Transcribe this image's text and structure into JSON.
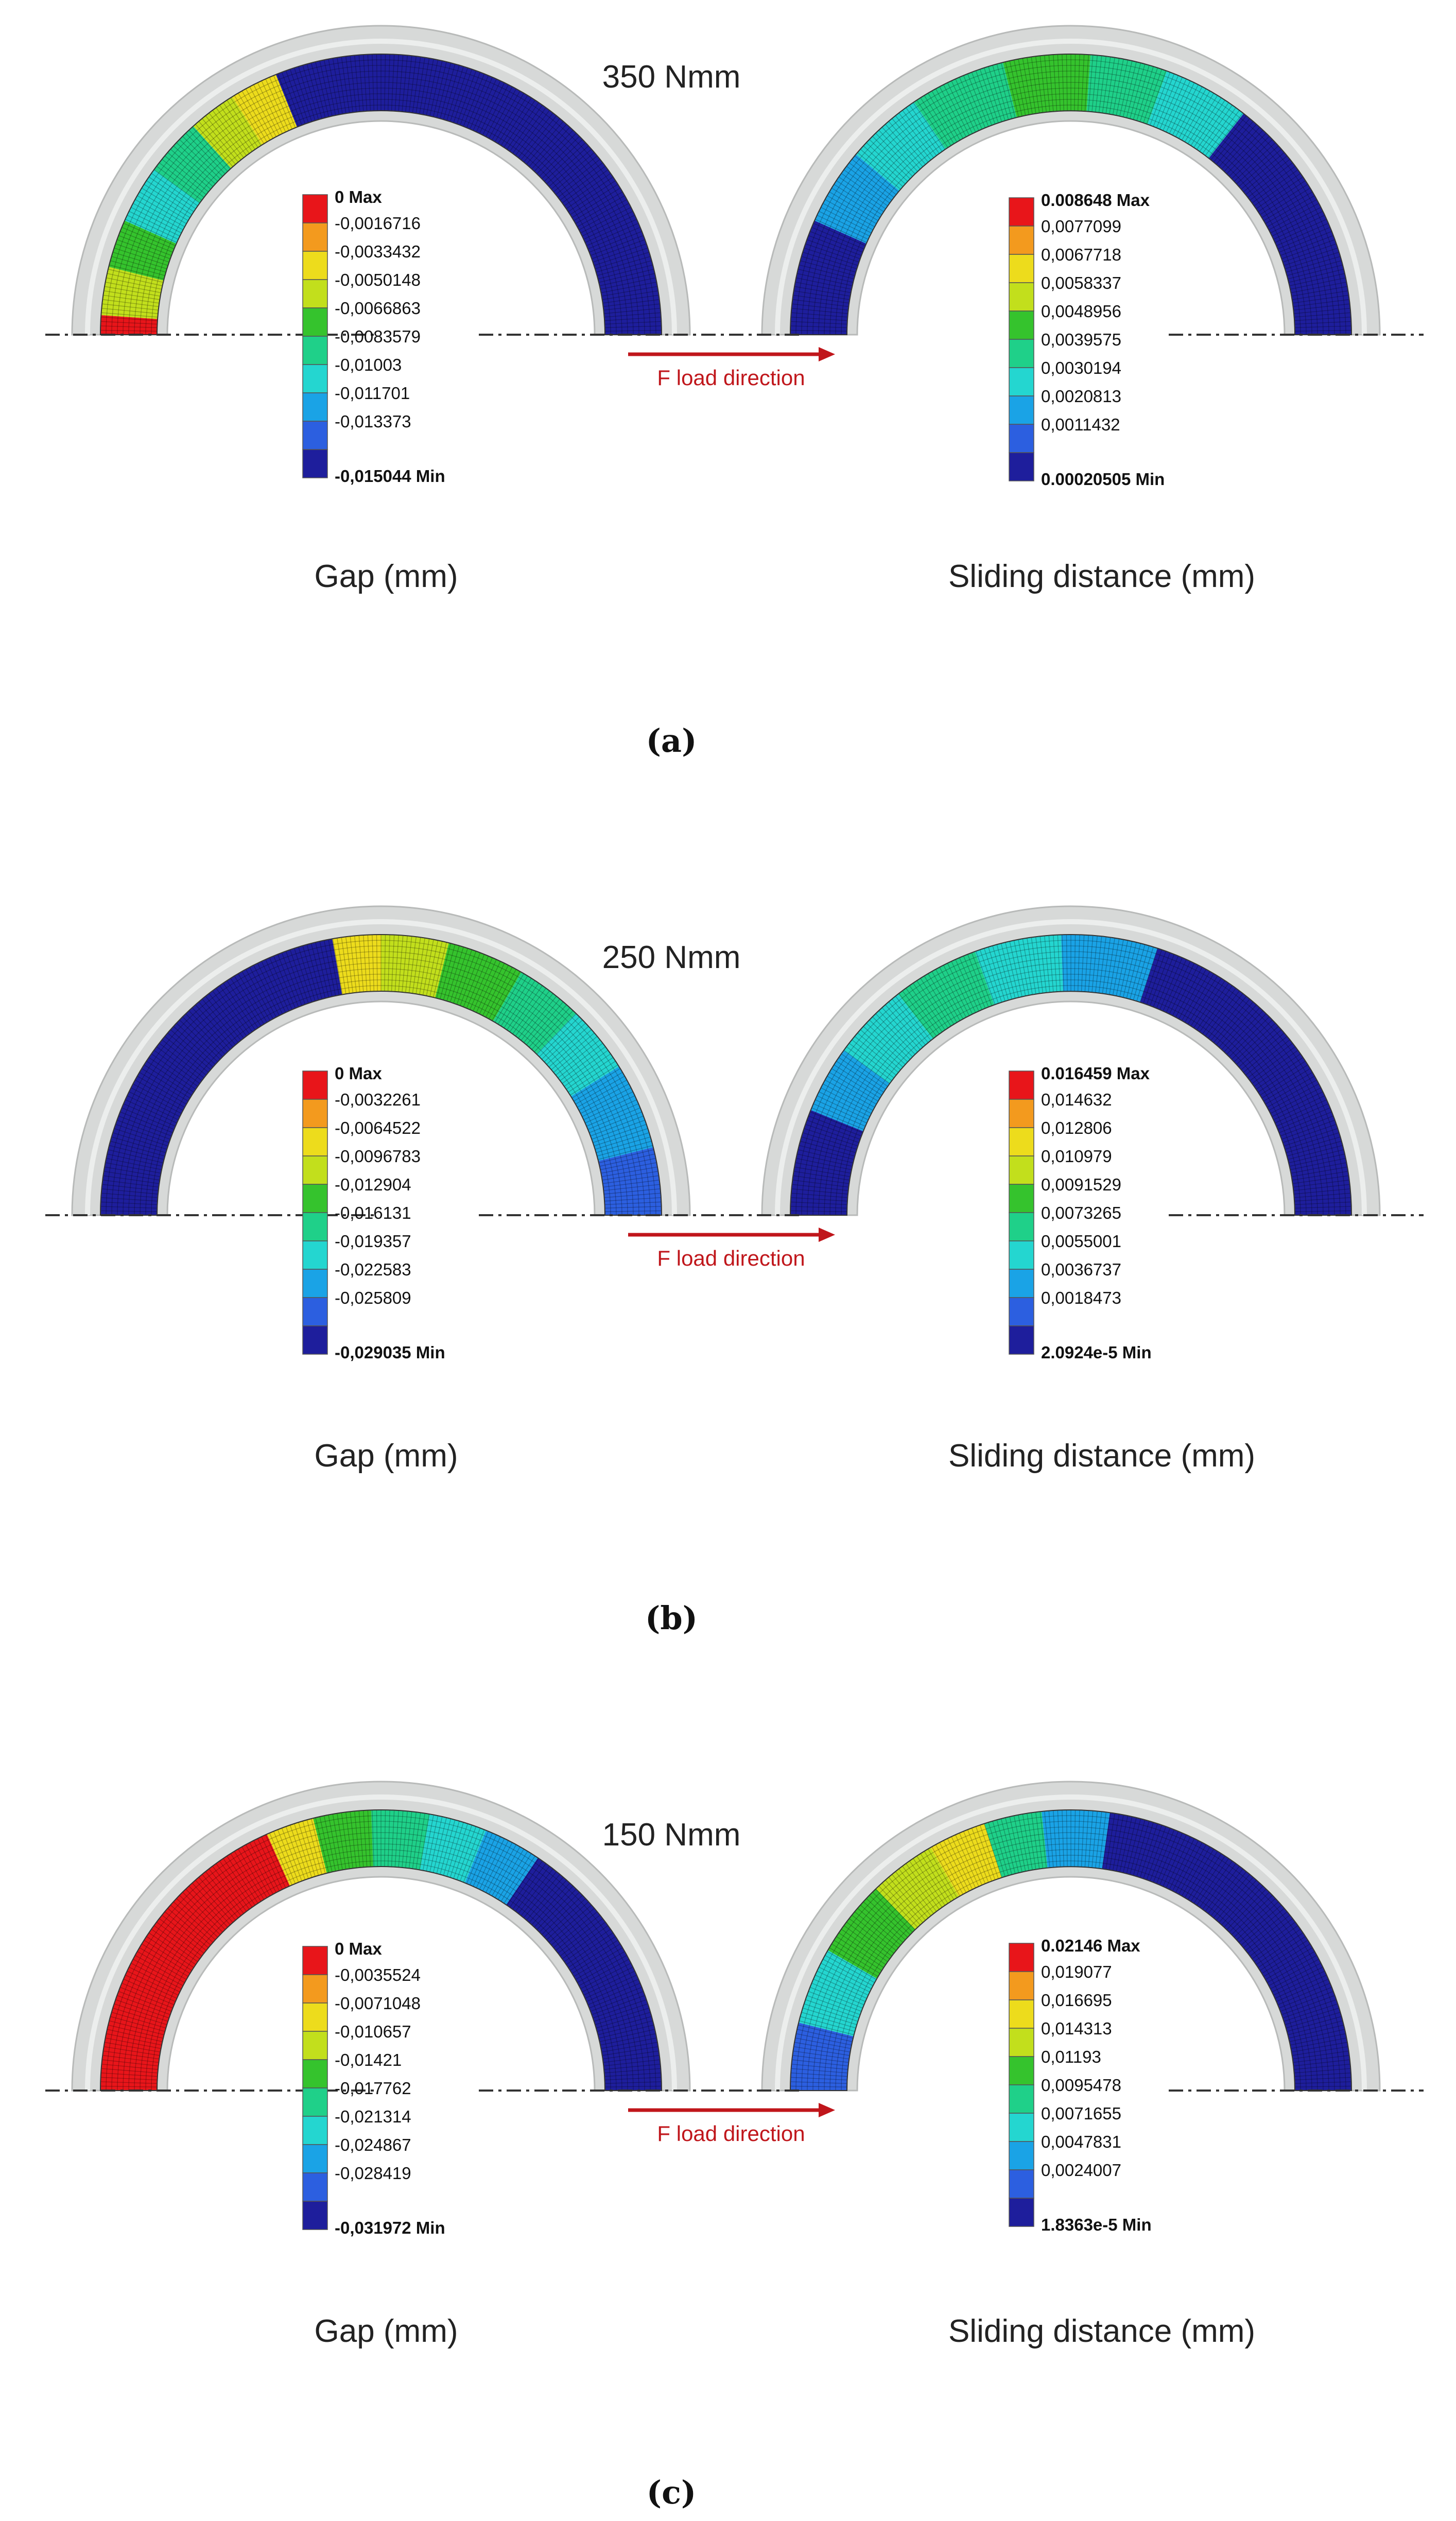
{
  "figure": {
    "panels": [
      {
        "id": "a",
        "load": "350 Nmm",
        "letter": "(a)",
        "load_direction_label": "F load direction",
        "gap": {
          "caption": "Gap (mm)",
          "legend": [
            "0 Max",
            "-0,0016716",
            "-0,0033432",
            "-0,0050148",
            "-0,0066863",
            "-0,0083579",
            "-0,01003",
            "-0,011701",
            "-0,013373",
            "-0,015044 Min"
          ],
          "regions": [
            {
              "from": 0,
              "to": 4,
              "level": 0
            },
            {
              "from": 4,
              "to": 14,
              "level": 3
            },
            {
              "from": 14,
              "to": 24,
              "level": 4
            },
            {
              "from": 24,
              "to": 36,
              "level": 6
            },
            {
              "from": 36,
              "to": 48,
              "level": 5
            },
            {
              "from": 48,
              "to": 58,
              "level": 3
            },
            {
              "from": 58,
              "to": 68,
              "level": 2
            },
            {
              "from": 68,
              "to": 180,
              "level": 9
            }
          ]
        },
        "sliding": {
          "caption": "Sliding distance (mm)",
          "legend": [
            "0.008648 Max",
            "0,0077099",
            "0,0067718",
            "0,0058337",
            "0,0048956",
            "0,0039575",
            "0,0030194",
            "0,0020813",
            "0,0011432",
            "0.00020505 Min"
          ],
          "regions": [
            {
              "from": 0,
              "to": 24,
              "level": 9
            },
            {
              "from": 24,
              "to": 40,
              "level": 7
            },
            {
              "from": 40,
              "to": 56,
              "level": 6
            },
            {
              "from": 56,
              "to": 76,
              "level": 5
            },
            {
              "from": 76,
              "to": 94,
              "level": 4
            },
            {
              "from": 94,
              "to": 110,
              "level": 5
            },
            {
              "from": 110,
              "to": 128,
              "level": 6
            },
            {
              "from": 128,
              "to": 180,
              "level": 9
            }
          ]
        }
      },
      {
        "id": "b",
        "load": "250 Nmm",
        "letter": "(b)",
        "load_direction_label": "F load direction",
        "gap": {
          "caption": "Gap (mm)",
          "legend": [
            "0 Max",
            "-0,0032261",
            "-0,0064522",
            "-0,0096783",
            "-0,012904",
            "-0,016131",
            "-0,019357",
            "-0,022583",
            "-0,025809",
            "-0,029035 Min"
          ],
          "regions": [
            {
              "from": 0,
              "to": 80,
              "level": 9
            },
            {
              "from": 80,
              "to": 90,
              "level": 2
            },
            {
              "from": 90,
              "to": 104,
              "level": 3
            },
            {
              "from": 104,
              "to": 120,
              "level": 4
            },
            {
              "from": 120,
              "to": 134,
              "level": 5
            },
            {
              "from": 134,
              "to": 148,
              "level": 6
            },
            {
              "from": 148,
              "to": 166,
              "level": 7
            },
            {
              "from": 166,
              "to": 180,
              "level": 8
            }
          ]
        },
        "sliding": {
          "caption": "Sliding distance (mm)",
          "legend": [
            "0.016459 Max",
            "0,014632",
            "0,012806",
            "0,010979",
            "0,0091529",
            "0,0073265",
            "0,0055001",
            "0,0036737",
            "0,0018473",
            "2.0924e-5 Min"
          ],
          "regions": [
            {
              "from": 0,
              "to": 22,
              "level": 9
            },
            {
              "from": 22,
              "to": 36,
              "level": 7
            },
            {
              "from": 36,
              "to": 52,
              "level": 6
            },
            {
              "from": 52,
              "to": 70,
              "level": 5
            },
            {
              "from": 70,
              "to": 88,
              "level": 6
            },
            {
              "from": 88,
              "to": 108,
              "level": 7
            },
            {
              "from": 108,
              "to": 180,
              "level": 9
            }
          ]
        }
      },
      {
        "id": "c",
        "load": "150 Nmm",
        "letter": "(c)",
        "load_direction_label": "F load direction",
        "gap": {
          "caption": "Gap (mm)",
          "legend": [
            "0 Max",
            "-0,0035524",
            "-0,0071048",
            "-0,010657",
            "-0,01421",
            "-0,017762",
            "-0,021314",
            "-0,024867",
            "-0,028419",
            "-0,031972 Min"
          ],
          "regions": [
            {
              "from": 0,
              "to": 66,
              "level": 0
            },
            {
              "from": 66,
              "to": 76,
              "level": 2
            },
            {
              "from": 76,
              "to": 88,
              "level": 4
            },
            {
              "from": 88,
              "to": 100,
              "level": 5
            },
            {
              "from": 100,
              "to": 112,
              "level": 6
            },
            {
              "from": 112,
              "to": 124,
              "level": 7
            },
            {
              "from": 124,
              "to": 180,
              "level": 9
            }
          ]
        },
        "sliding": {
          "caption": "Sliding distance (mm)",
          "legend": [
            "0.02146 Max",
            "0,019077",
            "0,016695",
            "0,014313",
            "0,01193",
            "0,0095478",
            "0,0071655",
            "0,0047831",
            "0,0024007",
            "1.8363e-5 Min"
          ],
          "regions": [
            {
              "from": 0,
              "to": 14,
              "level": 8
            },
            {
              "from": 14,
              "to": 30,
              "level": 6
            },
            {
              "from": 30,
              "to": 46,
              "level": 4
            },
            {
              "from": 46,
              "to": 60,
              "level": 3
            },
            {
              "from": 60,
              "to": 72,
              "level": 2
            },
            {
              "from": 72,
              "to": 84,
              "level": 5
            },
            {
              "from": 84,
              "to": 98,
              "level": 7
            },
            {
              "from": 98,
              "to": 180,
              "level": 9
            }
          ]
        }
      }
    ],
    "palette": [
      "#e8151a",
      "#f39a1e",
      "#eddc1c",
      "#c2df1c",
      "#35c32d",
      "#1fd089",
      "#24d6d0",
      "#1aa3e6",
      "#2c5fe0",
      "#1e1e9c"
    ]
  }
}
